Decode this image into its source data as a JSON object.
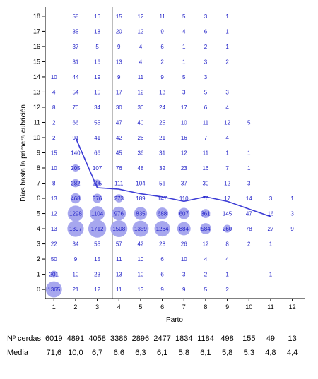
{
  "chart_data": {
    "type": "scatter",
    "xlabel": "Parto",
    "ylabel": "Días hasta la primera cubrición",
    "x_ticks": [
      1,
      2,
      3,
      4,
      5,
      6,
      7,
      8,
      9,
      10,
      11,
      12
    ],
    "y_ticks": [
      0,
      1,
      2,
      3,
      4,
      5,
      6,
      7,
      8,
      9,
      10,
      11,
      12,
      13,
      14,
      15,
      16,
      17,
      18
    ],
    "xlim": [
      0.6,
      12.6
    ],
    "ylim": [
      -0.6,
      18.6
    ],
    "grid": false,
    "reference_line_x": 3.7,
    "colors": {
      "count_text": "#2323c8",
      "bubble": "#a7a7ee",
      "mean_line": "#3d3dd6",
      "axis": "#000000",
      "reference_line": "#8a8a8a"
    },
    "cells": [
      {
        "x": 1,
        "y": 0,
        "n": "1365"
      },
      {
        "x": 2,
        "y": 0,
        "n": "21"
      },
      {
        "x": 3,
        "y": 0,
        "n": "12"
      },
      {
        "x": 4,
        "y": 0,
        "n": "11"
      },
      {
        "x": 5,
        "y": 0,
        "n": "13"
      },
      {
        "x": 6,
        "y": 0,
        "n": "9"
      },
      {
        "x": 7,
        "y": 0,
        "n": "9"
      },
      {
        "x": 8,
        "y": 0,
        "n": "5"
      },
      {
        "x": 9,
        "y": 0,
        "n": "2"
      },
      {
        "x": 1,
        "y": 1,
        "n": "201"
      },
      {
        "x": 2,
        "y": 1,
        "n": "10"
      },
      {
        "x": 3,
        "y": 1,
        "n": "23"
      },
      {
        "x": 4,
        "y": 1,
        "n": "13"
      },
      {
        "x": 5,
        "y": 1,
        "n": "10"
      },
      {
        "x": 6,
        "y": 1,
        "n": "6"
      },
      {
        "x": 7,
        "y": 1,
        "n": "3"
      },
      {
        "x": 8,
        "y": 1,
        "n": "2"
      },
      {
        "x": 9,
        "y": 1,
        "n": "1"
      },
      {
        "x": 11,
        "y": 1,
        "n": "1"
      },
      {
        "x": 1,
        "y": 2,
        "n": "50"
      },
      {
        "x": 2,
        "y": 2,
        "n": "9"
      },
      {
        "x": 3,
        "y": 2,
        "n": "15"
      },
      {
        "x": 4,
        "y": 2,
        "n": "11"
      },
      {
        "x": 5,
        "y": 2,
        "n": "10"
      },
      {
        "x": 6,
        "y": 2,
        "n": "6"
      },
      {
        "x": 7,
        "y": 2,
        "n": "10"
      },
      {
        "x": 8,
        "y": 2,
        "n": "4"
      },
      {
        "x": 9,
        "y": 2,
        "n": "4"
      },
      {
        "x": 1,
        "y": 3,
        "n": "22"
      },
      {
        "x": 2,
        "y": 3,
        "n": "34"
      },
      {
        "x": 3,
        "y": 3,
        "n": "55"
      },
      {
        "x": 4,
        "y": 3,
        "n": "57"
      },
      {
        "x": 5,
        "y": 3,
        "n": "42"
      },
      {
        "x": 6,
        "y": 3,
        "n": "28"
      },
      {
        "x": 7,
        "y": 3,
        "n": "26"
      },
      {
        "x": 8,
        "y": 3,
        "n": "12"
      },
      {
        "x": 9,
        "y": 3,
        "n": "8"
      },
      {
        "x": 10,
        "y": 3,
        "n": "2"
      },
      {
        "x": 11,
        "y": 3,
        "n": "1"
      },
      {
        "x": 1,
        "y": 4,
        "n": "13"
      },
      {
        "x": 2,
        "y": 4,
        "n": "1397"
      },
      {
        "x": 3,
        "y": 4,
        "n": "1712"
      },
      {
        "x": 4,
        "y": 4,
        "n": "1508"
      },
      {
        "x": 5,
        "y": 4,
        "n": "1359"
      },
      {
        "x": 6,
        "y": 4,
        "n": "1264"
      },
      {
        "x": 7,
        "y": 4,
        "n": "884"
      },
      {
        "x": 8,
        "y": 4,
        "n": "584"
      },
      {
        "x": 9,
        "y": 4,
        "n": "260"
      },
      {
        "x": 10,
        "y": 4,
        "n": "78"
      },
      {
        "x": 11,
        "y": 4,
        "n": "27"
      },
      {
        "x": 12,
        "y": 4,
        "n": "9"
      },
      {
        "x": 1,
        "y": 5,
        "n": "12"
      },
      {
        "x": 2,
        "y": 5,
        "n": "1298"
      },
      {
        "x": 3,
        "y": 5,
        "n": "1104"
      },
      {
        "x": 4,
        "y": 5,
        "n": "976"
      },
      {
        "x": 5,
        "y": 5,
        "n": "835"
      },
      {
        "x": 6,
        "y": 5,
        "n": "688"
      },
      {
        "x": 7,
        "y": 5,
        "n": "607"
      },
      {
        "x": 8,
        "y": 5,
        "n": "361"
      },
      {
        "x": 9,
        "y": 5,
        "n": "145"
      },
      {
        "x": 10,
        "y": 5,
        "n": "47"
      },
      {
        "x": 11,
        "y": 5,
        "n": "16"
      },
      {
        "x": 12,
        "y": 5,
        "n": "3"
      },
      {
        "x": 1,
        "y": 6,
        "n": "13"
      },
      {
        "x": 2,
        "y": 6,
        "n": "468"
      },
      {
        "x": 3,
        "y": 6,
        "n": "376"
      },
      {
        "x": 4,
        "y": 6,
        "n": "273"
      },
      {
        "x": 5,
        "y": 6,
        "n": "189"
      },
      {
        "x": 6,
        "y": 6,
        "n": "147"
      },
      {
        "x": 7,
        "y": 6,
        "n": "110"
      },
      {
        "x": 8,
        "y": 6,
        "n": "76"
      },
      {
        "x": 9,
        "y": 6,
        "n": "17"
      },
      {
        "x": 10,
        "y": 6,
        "n": "14"
      },
      {
        "x": 11,
        "y": 6,
        "n": "3"
      },
      {
        "x": 12,
        "y": 6,
        "n": "1"
      },
      {
        "x": 1,
        "y": 7,
        "n": "8"
      },
      {
        "x": 2,
        "y": 7,
        "n": "282"
      },
      {
        "x": 3,
        "y": 7,
        "n": "205"
      },
      {
        "x": 4,
        "y": 7,
        "n": "111"
      },
      {
        "x": 5,
        "y": 7,
        "n": "104"
      },
      {
        "x": 6,
        "y": 7,
        "n": "56"
      },
      {
        "x": 7,
        "y": 7,
        "n": "37"
      },
      {
        "x": 8,
        "y": 7,
        "n": "30"
      },
      {
        "x": 9,
        "y": 7,
        "n": "12"
      },
      {
        "x": 10,
        "y": 7,
        "n": "3"
      },
      {
        "x": 1,
        "y": 8,
        "n": "10"
      },
      {
        "x": 2,
        "y": 8,
        "n": "205"
      },
      {
        "x": 3,
        "y": 8,
        "n": "107"
      },
      {
        "x": 4,
        "y": 8,
        "n": "76"
      },
      {
        "x": 5,
        "y": 8,
        "n": "48"
      },
      {
        "x": 6,
        "y": 8,
        "n": "32"
      },
      {
        "x": 7,
        "y": 8,
        "n": "23"
      },
      {
        "x": 8,
        "y": 8,
        "n": "16"
      },
      {
        "x": 9,
        "y": 8,
        "n": "7"
      },
      {
        "x": 10,
        "y": 8,
        "n": "1"
      },
      {
        "x": 1,
        "y": 9,
        "n": "15"
      },
      {
        "x": 2,
        "y": 9,
        "n": "140"
      },
      {
        "x": 3,
        "y": 9,
        "n": "66"
      },
      {
        "x": 4,
        "y": 9,
        "n": "45"
      },
      {
        "x": 5,
        "y": 9,
        "n": "36"
      },
      {
        "x": 6,
        "y": 9,
        "n": "31"
      },
      {
        "x": 7,
        "y": 9,
        "n": "12"
      },
      {
        "x": 8,
        "y": 9,
        "n": "11"
      },
      {
        "x": 9,
        "y": 9,
        "n": "1"
      },
      {
        "x": 10,
        "y": 9,
        "n": "1"
      },
      {
        "x": 1,
        "y": 10,
        "n": "2"
      },
      {
        "x": 2,
        "y": 10,
        "n": "91"
      },
      {
        "x": 3,
        "y": 10,
        "n": "41"
      },
      {
        "x": 4,
        "y": 10,
        "n": "42"
      },
      {
        "x": 5,
        "y": 10,
        "n": "26"
      },
      {
        "x": 6,
        "y": 10,
        "n": "21"
      },
      {
        "x": 7,
        "y": 10,
        "n": "16"
      },
      {
        "x": 8,
        "y": 10,
        "n": "7"
      },
      {
        "x": 9,
        "y": 10,
        "n": "4"
      },
      {
        "x": 1,
        "y": 11,
        "n": "2"
      },
      {
        "x": 2,
        "y": 11,
        "n": "66"
      },
      {
        "x": 3,
        "y": 11,
        "n": "55"
      },
      {
        "x": 4,
        "y": 11,
        "n": "47"
      },
      {
        "x": 5,
        "y": 11,
        "n": "40"
      },
      {
        "x": 6,
        "y": 11,
        "n": "25"
      },
      {
        "x": 7,
        "y": 11,
        "n": "10"
      },
      {
        "x": 8,
        "y": 11,
        "n": "11"
      },
      {
        "x": 9,
        "y": 11,
        "n": "12"
      },
      {
        "x": 10,
        "y": 11,
        "n": "5"
      },
      {
        "x": 1,
        "y": 12,
        "n": "8"
      },
      {
        "x": 2,
        "y": 12,
        "n": "70"
      },
      {
        "x": 3,
        "y": 12,
        "n": "34"
      },
      {
        "x": 4,
        "y": 12,
        "n": "30"
      },
      {
        "x": 5,
        "y": 12,
        "n": "30"
      },
      {
        "x": 6,
        "y": 12,
        "n": "24"
      },
      {
        "x": 7,
        "y": 12,
        "n": "17"
      },
      {
        "x": 8,
        "y": 12,
        "n": "6"
      },
      {
        "x": 9,
        "y": 12,
        "n": "4"
      },
      {
        "x": 1,
        "y": 13,
        "n": "4"
      },
      {
        "x": 2,
        "y": 13,
        "n": "54"
      },
      {
        "x": 3,
        "y": 13,
        "n": "15"
      },
      {
        "x": 4,
        "y": 13,
        "n": "17"
      },
      {
        "x": 5,
        "y": 13,
        "n": "12"
      },
      {
        "x": 6,
        "y": 13,
        "n": "13"
      },
      {
        "x": 7,
        "y": 13,
        "n": "3"
      },
      {
        "x": 8,
        "y": 13,
        "n": "5"
      },
      {
        "x": 9,
        "y": 13,
        "n": "3"
      },
      {
        "x": 1,
        "y": 14,
        "n": "10"
      },
      {
        "x": 2,
        "y": 14,
        "n": "44"
      },
      {
        "x": 3,
        "y": 14,
        "n": "19"
      },
      {
        "x": 4,
        "y": 14,
        "n": "9"
      },
      {
        "x": 5,
        "y": 14,
        "n": "11"
      },
      {
        "x": 6,
        "y": 14,
        "n": "9"
      },
      {
        "x": 7,
        "y": 14,
        "n": "5"
      },
      {
        "x": 8,
        "y": 14,
        "n": "3"
      },
      {
        "x": 2,
        "y": 15,
        "n": "31"
      },
      {
        "x": 3,
        "y": 15,
        "n": "16"
      },
      {
        "x": 4,
        "y": 15,
        "n": "13"
      },
      {
        "x": 5,
        "y": 15,
        "n": "4"
      },
      {
        "x": 6,
        "y": 15,
        "n": "2"
      },
      {
        "x": 7,
        "y": 15,
        "n": "1"
      },
      {
        "x": 8,
        "y": 15,
        "n": "3"
      },
      {
        "x": 9,
        "y": 15,
        "n": "2"
      },
      {
        "x": 2,
        "y": 16,
        "n": "37"
      },
      {
        "x": 3,
        "y": 16,
        "n": "5"
      },
      {
        "x": 4,
        "y": 16,
        "n": "9"
      },
      {
        "x": 5,
        "y": 16,
        "n": "4"
      },
      {
        "x": 6,
        "y": 16,
        "n": "6"
      },
      {
        "x": 7,
        "y": 16,
        "n": "1"
      },
      {
        "x": 8,
        "y": 16,
        "n": "2"
      },
      {
        "x": 9,
        "y": 16,
        "n": "1"
      },
      {
        "x": 2,
        "y": 17,
        "n": "35"
      },
      {
        "x": 3,
        "y": 17,
        "n": "18"
      },
      {
        "x": 4,
        "y": 17,
        "n": "20"
      },
      {
        "x": 5,
        "y": 17,
        "n": "12"
      },
      {
        "x": 6,
        "y": 17,
        "n": "9"
      },
      {
        "x": 7,
        "y": 17,
        "n": "4"
      },
      {
        "x": 8,
        "y": 17,
        "n": "6"
      },
      {
        "x": 9,
        "y": 17,
        "n": "1"
      },
      {
        "x": 2,
        "y": 18,
        "n": "58"
      },
      {
        "x": 3,
        "y": 18,
        "n": "16"
      },
      {
        "x": 4,
        "y": 18,
        "n": "15"
      },
      {
        "x": 5,
        "y": 18,
        "n": "12"
      },
      {
        "x": 6,
        "y": 18,
        "n": "11"
      },
      {
        "x": 7,
        "y": 18,
        "n": "5"
      },
      {
        "x": 8,
        "y": 18,
        "n": "3"
      },
      {
        "x": 9,
        "y": 18,
        "n": "1"
      }
    ],
    "mean_line": {
      "x": [
        2,
        3,
        4,
        5,
        6,
        7,
        8,
        9,
        10,
        11
      ],
      "y": [
        10.0,
        6.7,
        6.6,
        6.3,
        6.1,
        5.8,
        6.1,
        5.8,
        5.3,
        4.8
      ]
    }
  },
  "footer": {
    "label_cerdas": "Nº cerdas",
    "label_media": "Media",
    "cerdas": [
      "6019",
      "4891",
      "4058",
      "3386",
      "2896",
      "2477",
      "1834",
      "1184",
      "498",
      "155",
      "49",
      "13"
    ],
    "media": [
      "71,6",
      "10,0",
      "6,7",
      "6,6",
      "6,3",
      "6,1",
      "5,8",
      "6,1",
      "5,8",
      "5,3",
      "4,8",
      "4,4"
    ]
  }
}
